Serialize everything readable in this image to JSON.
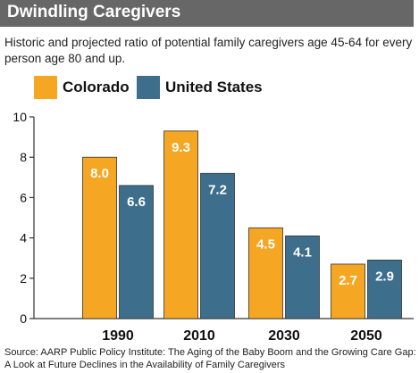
{
  "header": {
    "title": "Dwindling Caregivers"
  },
  "subtitle": "Historic and projected ratio of potential family caregivers age 45-64 for every person age 80 and up.",
  "legend": [
    {
      "name": "Colorado",
      "color": "#F5A623"
    },
    {
      "name": "United States",
      "color": "#3D6E8C"
    }
  ],
  "source": "Source: AARP Public Policy Institute: The Aging of the Baby Boom and the Growing Care Gap: A Look at Future Declines in the Availability of Family Caregivers",
  "chart_data": {
    "type": "bar",
    "title": "Dwindling Caregivers",
    "categories": [
      "1990",
      "2010",
      "2030",
      "2050"
    ],
    "series": [
      {
        "name": "Colorado",
        "values": [
          8.0,
          9.3,
          4.5,
          2.7
        ],
        "labels": [
          "8.0",
          "9.3",
          "4.5",
          "2.7"
        ],
        "color": "#F5A623"
      },
      {
        "name": "United States",
        "values": [
          6.6,
          7.2,
          4.1,
          2.9
        ],
        "labels": [
          "6.6",
          "7.2",
          "4.1",
          "2.9"
        ],
        "color": "#3D6E8C"
      }
    ],
    "ylim": [
      0,
      10
    ],
    "yticks": [
      "0",
      "2",
      "4",
      "6",
      "8",
      "10"
    ],
    "grid": false,
    "legend_position": "top-left"
  }
}
